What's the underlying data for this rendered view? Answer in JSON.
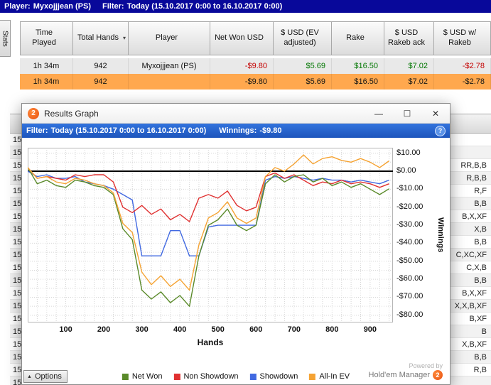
{
  "colors": {
    "highlight_row": "#ffa84e",
    "negative": "#c40000",
    "positive": "#007600",
    "titlebar_blue": "#08089a",
    "filterbar_blue": "#2a66cf"
  },
  "main_window": {
    "top_bar": {
      "player_label": "Player:",
      "player_value": "Myxojjjean (PS)",
      "filter_label": "Filter:",
      "filter_value": "Today (15.10.2017 0:00 to 16.10.2017 0:00)"
    },
    "stats_tab_label": "Stats",
    "results_table": {
      "sort_icon": "▾",
      "columns": [
        {
          "label": "Time Played"
        },
        {
          "label": "Total Hands",
          "sort": true
        },
        {
          "label": "Player"
        },
        {
          "label": "Net Won USD"
        },
        {
          "label": "$ USD (EV adjusted)"
        },
        {
          "label": "Rake"
        },
        {
          "label": "$ USD Rakeb ack"
        },
        {
          "label": "$ USD w/ Rakeb"
        }
      ],
      "rows": [
        {
          "highlight": "gray",
          "cells": [
            "1h 34m",
            "942",
            "Myxojjjean (PS)",
            "-$9.80",
            "$5.69",
            "$16.50",
            "$7.02",
            "-$2.78"
          ]
        },
        {
          "highlight": "orange",
          "cells": [
            "1h 34m",
            "942",
            "",
            "-$9.80",
            "$5.69",
            "$16.50",
            "$7.02",
            "-$2.78"
          ]
        }
      ]
    },
    "hands_list": {
      "rows": [
        {
          "time": "15",
          "actions": ""
        },
        {
          "time": "15",
          "actions": ""
        },
        {
          "time": "15",
          "actions": "RR,B,B"
        },
        {
          "time": "15",
          "actions": "R,B,B"
        },
        {
          "time": "15",
          "actions": "R,F"
        },
        {
          "time": "15",
          "actions": "B,B"
        },
        {
          "time": "15",
          "actions": "B,X,XF"
        },
        {
          "time": "15",
          "actions": "X,B"
        },
        {
          "time": "15",
          "actions": "B,B"
        },
        {
          "time": "15",
          "actions": "C,XC,XF"
        },
        {
          "time": "15",
          "actions": "C,X,B"
        },
        {
          "time": "15",
          "actions": "B,B"
        },
        {
          "time": "15",
          "actions": "B,X,XF"
        },
        {
          "time": "15",
          "actions": "X,X,B,XF"
        },
        {
          "time": "15",
          "actions": "B,XF"
        },
        {
          "time": "15",
          "actions": "B"
        },
        {
          "time": "15",
          "actions": "X,B,XF"
        },
        {
          "time": "15",
          "actions": "B,B"
        },
        {
          "time": "15",
          "actions": "R,B"
        },
        {
          "time": "15",
          "actions": ""
        }
      ]
    }
  },
  "popup": {
    "title": "Results Graph",
    "logo_text": "2",
    "window_buttons": {
      "minimize": "—",
      "maximize": "☐",
      "close": "✕"
    },
    "filter_bar": {
      "filter_label": "Filter:",
      "filter_value": "Today (15.10.2017 0:00 to 16.10.2017 0:00)",
      "winnings_label": "Winnings:",
      "winnings_value": "-$9.80",
      "help_glyph": "?"
    },
    "options_label": "Options",
    "options_arrow": "▲",
    "powered_by": "Powered by",
    "brand": "Hold'em Manager"
  },
  "chart_data": {
    "type": "line",
    "title": "Results Graph",
    "xlabel": "Hands",
    "ylabel": "Winnings",
    "xlim": [
      0,
      960
    ],
    "ylim": [
      -84,
      13
    ],
    "grid": true,
    "legend_position": "bottom",
    "x_ticks": [
      100,
      200,
      300,
      400,
      500,
      600,
      700,
      800,
      900
    ],
    "y_tick_labels": [
      "$10.00",
      "$0.00",
      "-$10.00",
      "-$20.00",
      "-$30.00",
      "-$40.00",
      "-$50.00",
      "-$60.00",
      "-$70.00",
      "-$80.00"
    ],
    "y_tick_values": [
      10,
      0,
      -10,
      -20,
      -30,
      -40,
      -50,
      -60,
      -70,
      -80
    ],
    "x": [
      0,
      25,
      50,
      75,
      100,
      125,
      150,
      175,
      200,
      225,
      250,
      275,
      300,
      325,
      350,
      375,
      400,
      425,
      450,
      475,
      500,
      525,
      550,
      575,
      600,
      625,
      650,
      675,
      700,
      725,
      750,
      775,
      800,
      825,
      850,
      875,
      900,
      925,
      950
    ],
    "series": [
      {
        "name": "Net Won",
        "color": "#5a8a2a",
        "values": [
          2,
          -7,
          -5,
          -8,
          -9,
          -5,
          -6,
          -8,
          -9,
          -13,
          -32,
          -38,
          -66,
          -71,
          -67,
          -73,
          -69,
          -75,
          -47,
          -30,
          -27,
          -21,
          -30,
          -33,
          -30,
          -7,
          -2,
          -6,
          -3,
          -2,
          -6,
          -4,
          -8,
          -6,
          -9,
          -7,
          -10,
          -13,
          -9.8
        ]
      },
      {
        "name": "Non Showdown",
        "color": "#e03030",
        "values": [
          2,
          -4,
          -3,
          -4,
          -5,
          -2,
          -3,
          -2,
          -2,
          -6,
          -20,
          -23,
          -19,
          -24,
          -21,
          -27,
          -24,
          -28,
          -15,
          -13,
          -15,
          -11,
          -19,
          -22,
          -20,
          -3,
          -1,
          -4,
          -2,
          -5,
          -8,
          -6,
          -7,
          -5,
          -7,
          -6,
          -7,
          -9,
          -7
        ]
      },
      {
        "name": "Showdown",
        "color": "#4169e1",
        "values": [
          0,
          -3,
          -2,
          -4,
          -4,
          -3,
          -6,
          -7,
          -8,
          -10,
          -13,
          -16,
          -47,
          -47,
          -47,
          -33,
          -33,
          -47,
          -47,
          -31,
          -30,
          -30,
          -30,
          -30,
          -30,
          -5,
          -3,
          -4,
          -3,
          -4,
          -5,
          -4,
          -5,
          -5,
          -6,
          -5,
          -6,
          -7,
          -5
        ]
      },
      {
        "name": "All-In EV",
        "color": "#f5a333",
        "values": [
          2,
          -4,
          -3,
          -6,
          -7,
          -4,
          -5,
          -7,
          -8,
          -12,
          -29,
          -34,
          -56,
          -63,
          -58,
          -64,
          -60,
          -66,
          -41,
          -26,
          -23,
          -17,
          -26,
          -29,
          -26,
          -3,
          2,
          0,
          4,
          9,
          4,
          7,
          8,
          6,
          5,
          7,
          5,
          2,
          5.69
        ]
      }
    ],
    "final_values": {
      "net_won": "-$9.80",
      "ev_adjusted": "$5.69"
    }
  }
}
